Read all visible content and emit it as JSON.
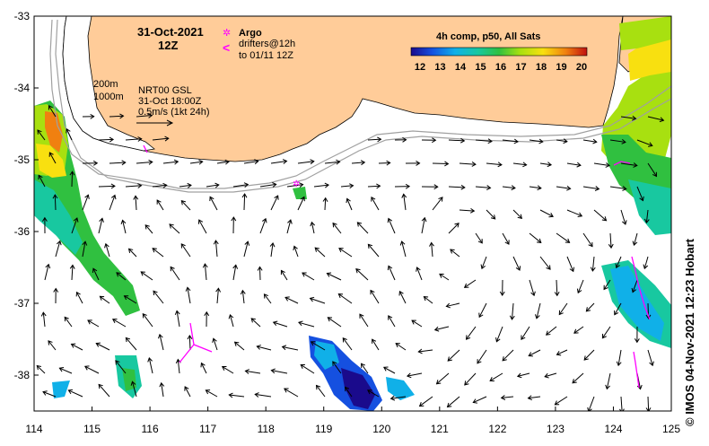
{
  "map": {
    "date": "31-Oct-2021",
    "hour": "12Z",
    "legend": {
      "argo_label": "Argo",
      "drifters_label": "drifters@12h",
      "drifters_until": "to 01/11 12Z",
      "argo_symbol": "✲",
      "drifter_symbol": "<"
    },
    "isobaths": {
      "shallow": "200m",
      "deep": "1000m"
    },
    "currents": {
      "product": "NRT00 GSL",
      "valid": "31-Oct 18:00Z",
      "scale": "0.5m/s (1kt 24h)"
    },
    "colorbar": {
      "title": "4h comp, p50, All Sats",
      "ticks": [
        "12",
        "13",
        "14",
        "15",
        "16",
        "17",
        "18",
        "19",
        "20"
      ],
      "min": 12,
      "max": 20
    },
    "axes": {
      "lon_ticks": [
        "114",
        "115",
        "116",
        "117",
        "118",
        "119",
        "120",
        "121",
        "122",
        "123",
        "124",
        "125"
      ],
      "lat_ticks": [
        "-33",
        "-34",
        "-35",
        "-36",
        "-37",
        "-38"
      ],
      "lon_range": [
        114,
        125
      ],
      "lat_range": [
        -38.5,
        -33
      ]
    },
    "credit": "© IMOS 04-Nov-2021 12:23 Hobart",
    "colors": {
      "land": "#ffcc99",
      "ocean": "#ffffff",
      "argo": "#ff00ff",
      "drifter": "#ff00ff",
      "isobath": "#a0a0a0"
    }
  }
}
